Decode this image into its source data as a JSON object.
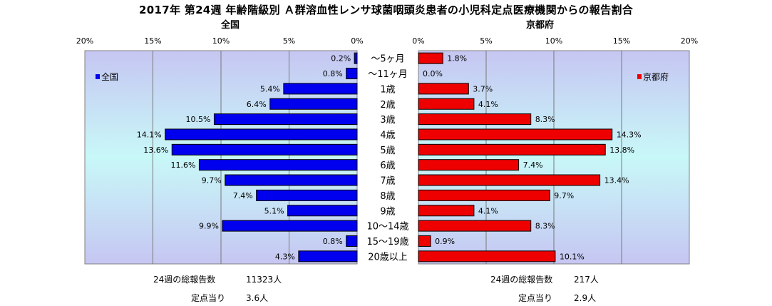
{
  "title": "2017年 第24週 年齢階級別 Ａ群溶血性レンサ球菌咽頭炎患者の小児科定点医療機関からの報告割合",
  "colors": {
    "national_bar": "#0000ee",
    "kyoto_bar": "#ee0000",
    "plot_bg_top": "#c6c6f2",
    "plot_bg_middle": "#c8f8f8",
    "grid": "#000000"
  },
  "chart_data": {
    "type": "bar",
    "orientation": "horizontal",
    "layout": "population-pyramid",
    "categories": [
      "〜5ヶ月",
      "〜11ヶ月",
      "1歳",
      "2歳",
      "3歳",
      "4歳",
      "5歳",
      "6歳",
      "7歳",
      "8歳",
      "9歳",
      "10〜14歳",
      "15〜19歳",
      "20歳以上"
    ],
    "xlim": [
      0,
      20
    ],
    "ticks": [
      "0%",
      "5%",
      "10%",
      "15%",
      "20%"
    ],
    "grid": true,
    "series": [
      {
        "name": "全国",
        "panel_title": "全国",
        "side": "left",
        "legend_position": "left",
        "values": [
          0.2,
          0.8,
          5.4,
          6.4,
          10.5,
          14.1,
          13.6,
          11.6,
          9.7,
          7.4,
          5.1,
          9.9,
          0.8,
          4.3
        ],
        "labels": [
          "0.2%",
          "0.8%",
          "5.4%",
          "6.4%",
          "10.5%",
          "14.1%",
          "13.6%",
          "11.6%",
          "9.7%",
          "7.4%",
          "5.1%",
          "9.9%",
          "0.8%",
          "4.3%"
        ]
      },
      {
        "name": "京都府",
        "panel_title": "京都府",
        "side": "right",
        "legend_position": "right",
        "values": [
          1.8,
          0.0,
          3.7,
          4.1,
          8.3,
          14.3,
          13.8,
          7.4,
          13.4,
          9.7,
          4.1,
          8.3,
          0.9,
          10.1
        ],
        "labels": [
          "1.8%",
          "0.0%",
          "3.7%",
          "4.1%",
          "8.3%",
          "14.3%",
          "13.8%",
          "7.4%",
          "13.4%",
          "9.7%",
          "4.1%",
          "8.3%",
          "0.9%",
          "10.1%"
        ]
      }
    ]
  },
  "stats": {
    "national": {
      "total_label": "24週の総報告数",
      "total_value": "11323人",
      "per_site_label": "定点当り",
      "per_site_value": "3.6人"
    },
    "kyoto": {
      "total_label": "24週の総報告数",
      "total_value": "217人",
      "per_site_label": "定点当り",
      "per_site_value": "2.9人"
    }
  }
}
